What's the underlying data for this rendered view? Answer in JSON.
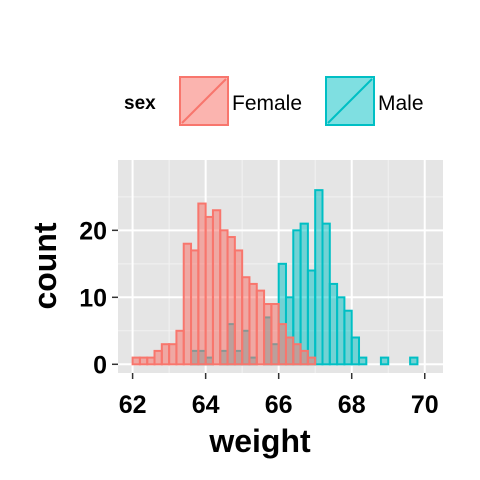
{
  "chart_data": {
    "type": "histogram",
    "title": "",
    "xlabel": "weight",
    "ylabel": "count",
    "xlim": [
      61.6,
      70.5
    ],
    "ylim": [
      -1.3,
      30.5
    ],
    "xticks": [
      62,
      64,
      66,
      68,
      70
    ],
    "yticks": [
      0,
      10,
      20
    ],
    "grid": true,
    "legend": {
      "title": "sex",
      "position": "top"
    },
    "bin_width": 0.2,
    "bin_starts": [
      61.8,
      62.0,
      62.2,
      62.4,
      62.6,
      62.8,
      63.0,
      63.2,
      63.4,
      63.6,
      63.8,
      64.0,
      64.2,
      64.4,
      64.6,
      64.8,
      65.0,
      65.2,
      65.4,
      65.6,
      65.8,
      66.0,
      66.2,
      66.4,
      66.6,
      66.8,
      67.0,
      67.2,
      67.4,
      67.6,
      67.8,
      68.0,
      68.2,
      68.4,
      68.6,
      68.8,
      69.0,
      69.2,
      69.4,
      69.6,
      69.8,
      70.0
    ],
    "series": [
      {
        "name": "Female",
        "color_fill": "#F8766D",
        "color_line": "#F8766D",
        "values": [
          0,
          1,
          1,
          1,
          2,
          3,
          3,
          5,
          18,
          17,
          24,
          22,
          23,
          20,
          19,
          17,
          13,
          12,
          11,
          9,
          9,
          6,
          4,
          3,
          2,
          1,
          0,
          0,
          0,
          0,
          0,
          0,
          0,
          0,
          0,
          0,
          0,
          0,
          0,
          0,
          0,
          0
        ]
      },
      {
        "name": "Male",
        "color_fill": "#00BFC4",
        "color_line": "#00BFC4",
        "values": [
          0,
          0,
          0,
          0,
          0,
          0,
          0,
          0,
          0,
          2,
          2,
          1,
          0,
          2,
          6,
          2,
          5,
          1,
          0,
          7,
          3,
          15,
          10,
          20,
          21,
          14,
          26,
          21,
          12,
          10,
          8,
          4,
          1,
          0,
          0,
          1,
          0,
          0,
          0,
          1,
          0,
          0
        ]
      }
    ]
  },
  "legend_items": [
    {
      "label": "Female",
      "fill": "#F8766D"
    },
    {
      "label": "Male",
      "fill": "#00BFC4"
    }
  ]
}
